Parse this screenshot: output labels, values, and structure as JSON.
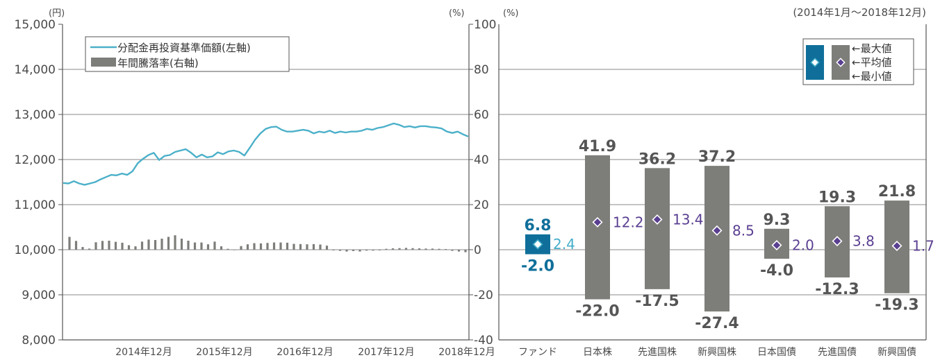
{
  "chart_data": [
    {
      "type": "line",
      "left_axis": {
        "unit": "(円)",
        "ylim": [
          8000,
          15000
        ],
        "ticks": [
          "15,000",
          "14,000",
          "13,000",
          "12,000",
          "11,000",
          "10,000",
          "9,000",
          "8,000"
        ]
      },
      "right_axis": {
        "unit": "(%)",
        "ylim": [
          -40,
          100
        ]
      },
      "x_ticks": [
        "2014年12月",
        "2015年12月",
        "2016年12月",
        "2017年12月",
        "2018年12月"
      ],
      "legend": [
        "分配金再投資基準価額(左軸)",
        "年間騰落率(右軸)"
      ],
      "colors": {
        "line": "#4bb0c9",
        "bars": "#7d7d7a"
      },
      "series": [
        {
          "name": "分配金再投資基準価額(左軸)",
          "axis": "left",
          "x_range": [
            "2014-01",
            "2018-12"
          ],
          "values": [
            11480,
            11470,
            11520,
            11470,
            11440,
            11470,
            11500,
            11560,
            11610,
            11660,
            11650,
            11690,
            11660,
            11740,
            11920,
            12020,
            12100,
            12150,
            11990,
            12080,
            12100,
            12170,
            12200,
            12230,
            12150,
            12050,
            12110,
            12050,
            12070,
            12160,
            12120,
            12180,
            12200,
            12170,
            12090,
            12260,
            12440,
            12580,
            12680,
            12720,
            12730,
            12660,
            12620,
            12620,
            12640,
            12660,
            12640,
            12580,
            12620,
            12600,
            12640,
            12590,
            12620,
            12600,
            12620,
            12620,
            12640,
            12680,
            12660,
            12700,
            12720,
            12760,
            12800,
            12770,
            12720,
            12740,
            12710,
            12740,
            12740,
            12720,
            12710,
            12690,
            12620,
            12590,
            12620,
            12560,
            12510
          ]
        },
        {
          "name": "年間騰落率(右軸)",
          "axis": "right",
          "values": [
            5.7,
            3.9,
            1.2,
            0.5,
            3.3,
            3.9,
            4.0,
            3.5,
            3.1,
            2.0,
            1.5,
            3.6,
            4.5,
            4.3,
            4.9,
            5.7,
            6.4,
            4.9,
            4.0,
            3.2,
            3.2,
            2.4,
            3.6,
            1.5,
            0.4,
            -0.2,
            1.6,
            2.4,
            2.9,
            2.8,
            3.0,
            3.2,
            3.2,
            3.1,
            2.6,
            2.5,
            2.4,
            2.5,
            2.3,
            1.8,
            -0.3,
            -0.5,
            -0.8,
            -0.6,
            -0.8,
            -0.4,
            -0.4,
            -0.3,
            0.4,
            0.6,
            0.7,
            0.8,
            0.7,
            0.6,
            0.5,
            0.5,
            0.4,
            0.3,
            -0.5,
            -0.8,
            -1.1
          ]
        }
      ]
    },
    {
      "type": "bar",
      "subtitle": "(2014年1月〜2018年12月)",
      "y_unit": "(%)",
      "ylim": [
        -40,
        100
      ],
      "yticks": [
        "100",
        "80",
        "60",
        "40",
        "20",
        "0",
        "-20",
        "-40"
      ],
      "categories": [
        "ファンド",
        "日本株",
        "先進国株",
        "新興国株",
        "日本国債",
        "先進国債",
        "新興国債"
      ],
      "max": [
        6.8,
        41.9,
        36.2,
        37.2,
        9.3,
        19.3,
        21.8
      ],
      "avg": [
        2.4,
        12.2,
        13.4,
        8.5,
        2.0,
        3.8,
        1.7
      ],
      "min": [
        -2.0,
        -22.0,
        -17.5,
        -27.4,
        -4.0,
        -12.3,
        -19.3
      ],
      "max_labels": [
        "6.8",
        "41.9",
        "36.2",
        "37.2",
        "9.3",
        "19.3",
        "21.8"
      ],
      "avg_labels": [
        "2.4",
        "12.2",
        "13.4",
        "8.5",
        "2.0",
        "3.8",
        "1.7"
      ],
      "min_labels": [
        "-2.0",
        "-22.0",
        "-17.5",
        "-27.4",
        "-4.0",
        "-12.3",
        "-19.3"
      ],
      "legend": {
        "max": "←最大値",
        "avg": "←平均値",
        "min": "←最小値"
      },
      "colors": {
        "fund": "#0f6f9a",
        "others": "#7d7d7a",
        "marker": "#5a3f91",
        "fund_avg_text": "#45aeca",
        "fund_text": "#0f6f9a",
        "other_text": "#555555",
        "avg_text": "#5a3f91"
      }
    }
  ]
}
